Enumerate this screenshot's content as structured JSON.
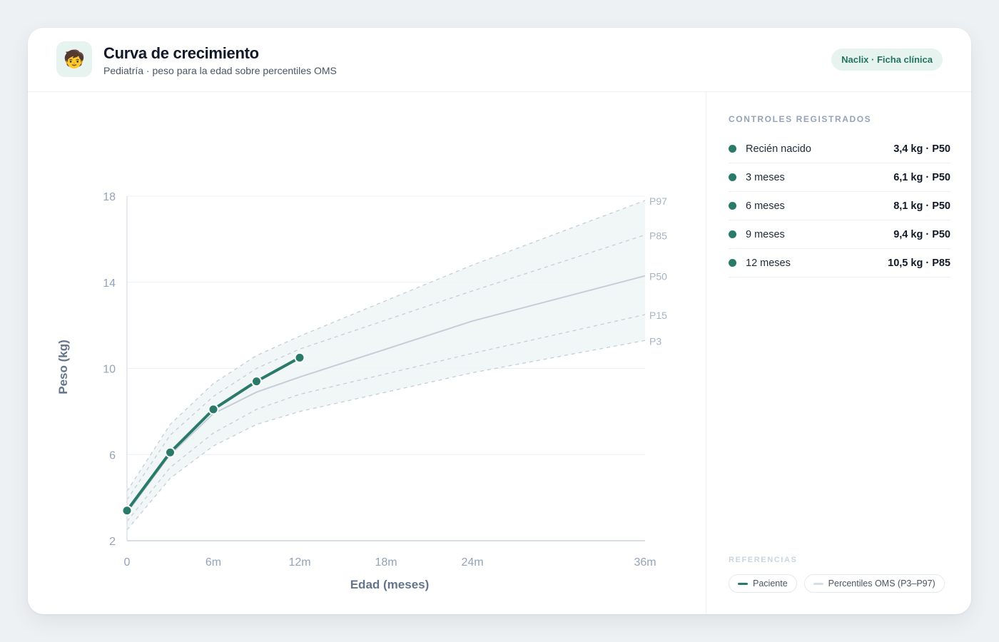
{
  "header": {
    "logo_icon": "child-face-icon",
    "logo_glyph": "🧒",
    "title": "Curva de crecimiento",
    "subtitle": "Pediatría · peso para la edad sobre percentiles OMS",
    "brand": "Naclix · Ficha clínica"
  },
  "colors": {
    "accent": "#2a7a6a",
    "percentile_line": "#c5ced8",
    "band_fill": "#eef5f5"
  },
  "chart_data": {
    "type": "line",
    "xlabel": "Edad (meses)",
    "ylabel": "Peso (kg)",
    "xlim": [
      0,
      36
    ],
    "ylim": [
      2,
      18
    ],
    "x_ticks": [
      {
        "value": 0,
        "label": "0"
      },
      {
        "value": 6,
        "label": "6m"
      },
      {
        "value": 12,
        "label": "12m"
      },
      {
        "value": 18,
        "label": "18m"
      },
      {
        "value": 24,
        "label": "24m"
      },
      {
        "value": 36,
        "label": "36m"
      }
    ],
    "y_ticks": [
      {
        "value": 2,
        "label": "2"
      },
      {
        "value": 6,
        "label": "6"
      },
      {
        "value": 10,
        "label": "10"
      },
      {
        "value": 14,
        "label": "14"
      },
      {
        "value": 18,
        "label": "18"
      }
    ],
    "grid": true,
    "x": [
      0,
      3,
      6,
      9,
      12,
      24,
      36
    ],
    "series": [
      {
        "name": "P97",
        "values": [
          4.3,
          7.4,
          9.3,
          10.6,
          11.5,
          14.8,
          17.8
        ]
      },
      {
        "name": "P85",
        "values": [
          3.9,
          6.9,
          8.7,
          10.0,
          10.9,
          13.6,
          16.2
        ]
      },
      {
        "name": "P50",
        "values": [
          3.3,
          6.0,
          7.9,
          8.9,
          9.6,
          12.2,
          14.3
        ]
      },
      {
        "name": "P15",
        "values": [
          2.9,
          5.4,
          7.0,
          8.1,
          8.8,
          10.7,
          12.5
        ]
      },
      {
        "name": "P3",
        "values": [
          2.5,
          4.9,
          6.4,
          7.4,
          8.0,
          9.8,
          11.3
        ]
      }
    ],
    "patient": {
      "x": [
        0,
        3,
        6,
        9,
        12
      ],
      "values": [
        3.4,
        6.1,
        8.1,
        9.4,
        10.5
      ]
    }
  },
  "sidebar": {
    "controls_title": "CONTROLES REGISTRADOS",
    "controls": [
      {
        "label": "Recién nacido",
        "value": "3,4 kg · P50"
      },
      {
        "label": "3 meses",
        "value": "6,1 kg · P50"
      },
      {
        "label": "6 meses",
        "value": "8,1 kg · P50"
      },
      {
        "label": "9 meses",
        "value": "9,4 kg · P50"
      },
      {
        "label": "12 meses",
        "value": "10,5 kg · P85"
      }
    ],
    "refs_title": "REFERENCIAS",
    "legend": [
      {
        "label": "Paciente",
        "color": "#2a7a6a"
      },
      {
        "label": "Percentiles OMS (P3–P97)",
        "color": "#d6dde5"
      }
    ]
  }
}
